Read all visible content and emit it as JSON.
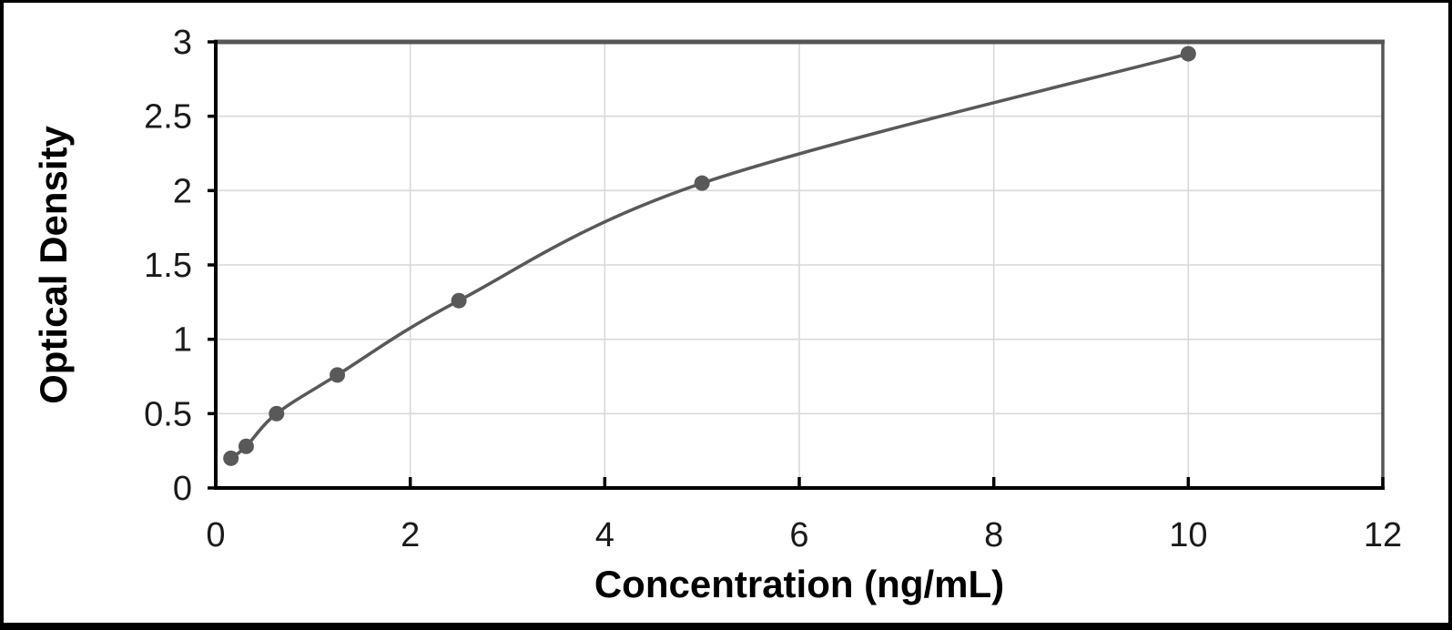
{
  "figure": {
    "background": "#ffffff",
    "frame_color": "#000000"
  },
  "chart_data": {
    "type": "scatter",
    "title": "",
    "xlabel": "Concentration (ng/mL)",
    "ylabel": "Optical Density",
    "x": [
      0.156,
      0.313,
      0.625,
      1.25,
      2.5,
      5,
      10
    ],
    "y": [
      0.2,
      0.28,
      0.5,
      0.76,
      1.26,
      2.05,
      2.92
    ],
    "xlim": [
      0,
      12
    ],
    "ylim": [
      0,
      3
    ],
    "x_ticks": [
      0,
      2,
      4,
      6,
      8,
      10,
      12
    ],
    "x_tick_labels": [
      "0",
      "2",
      "4",
      "6",
      "8",
      "10",
      "12"
    ],
    "y_ticks": [
      0,
      0.5,
      1,
      1.5,
      2,
      2.5,
      3
    ],
    "y_tick_labels": [
      "0",
      "0.5",
      "1",
      "1.5",
      "2",
      "2.5",
      "3"
    ],
    "grid": true,
    "legend": "none",
    "line_smooth": true,
    "series_color": "#595959",
    "marker_color": "#595959",
    "gridline_color": "#d9d9d9",
    "axis_color": "#000000",
    "plot_border_color": "#555555",
    "tick_label_color": "#1a1a1a"
  }
}
